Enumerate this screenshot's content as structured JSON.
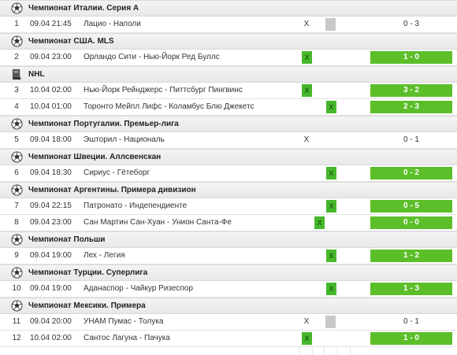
{
  "colors": {
    "win": "#5cbf2a",
    "pick": "#46b82c",
    "pending": "#c8c8c8"
  },
  "sections": [
    {
      "title": "Чемпионат Италии. Серия А",
      "icon": "soccer-ball-icon",
      "rows": [
        {
          "num": "1",
          "datetime": "09.04 21:45",
          "match": "Лацио - Наполи",
          "mark": "X",
          "mark_col": 1,
          "pending_col": 3,
          "score": "0 - 3",
          "win": false
        }
      ]
    },
    {
      "title": "Чемпионат США. MLS",
      "icon": "soccer-ball-icon",
      "rows": [
        {
          "num": "2",
          "datetime": "09.04 23:00",
          "match": "Орландо Сити - Нью-Йорк Ред Буллс",
          "mark": "X",
          "mark_col": 1,
          "score": "1 - 0",
          "win": true
        }
      ]
    },
    {
      "title": "NHL",
      "icon": "hockey-icon",
      "rows": [
        {
          "num": "3",
          "datetime": "10.04 02:00",
          "match": "Нью-Йорк Рейнджерс - Питтсбург Пингвинс",
          "mark": "X",
          "mark_col": 1,
          "score": "3 - 2",
          "win": true
        },
        {
          "num": "4",
          "datetime": "10.04 01:00",
          "match": "Торонто Мейпл Лифс - Коламбус Блю Джекетс",
          "mark": "X",
          "mark_col": 3,
          "score": "2 - 3",
          "win": true
        }
      ]
    },
    {
      "title": "Чемпионат Португалии. Премьер-лига",
      "icon": "soccer-ball-icon",
      "rows": [
        {
          "num": "5",
          "datetime": "09.04 18:00",
          "match": "Эшторил - Националь",
          "mark": "X",
          "mark_col": 1,
          "score": "0 - 1",
          "win": false
        }
      ]
    },
    {
      "title": "Чемпионат Швеции. Аллсвенскан",
      "icon": "soccer-ball-icon",
      "rows": [
        {
          "num": "6",
          "datetime": "09.04 18:30",
          "match": "Сириус - Гётеборг",
          "mark": "X",
          "mark_col": 3,
          "score": "0 - 2",
          "win": true
        }
      ]
    },
    {
      "title": "Чемпионат Аргентины. Примера дивизион",
      "icon": "soccer-ball-icon",
      "rows": [
        {
          "num": "7",
          "datetime": "09.04 22:15",
          "match": "Патронато - Индепендиенте",
          "mark": "X",
          "mark_col": 3,
          "score": "0 - 5",
          "win": true
        },
        {
          "num": "8",
          "datetime": "09.04 23:00",
          "match": "Сан Мартин Сан-Хуан - Унион Санта-Фе",
          "mark": "X",
          "mark_col": 2,
          "score": "0 - 0",
          "win": true
        }
      ]
    },
    {
      "title": "Чемпионат Польши",
      "icon": "soccer-ball-icon",
      "rows": [
        {
          "num": "9",
          "datetime": "09.04 19:00",
          "match": "Лех - Легия",
          "mark": "X",
          "mark_col": 3,
          "score": "1 - 2",
          "win": true
        }
      ]
    },
    {
      "title": "Чемпионат Турции. Суперлига",
      "icon": "soccer-ball-icon",
      "rows": [
        {
          "num": "10",
          "datetime": "09.04 19:00",
          "match": "Аданаспор - Чайкур Ризеспор",
          "mark": "X",
          "mark_col": 3,
          "score": "1 - 3",
          "win": true
        }
      ]
    },
    {
      "title": "Чемпионат Мексики. Примера",
      "icon": "soccer-ball-icon",
      "rows": [
        {
          "num": "11",
          "datetime": "09.04 20:00",
          "match": "УНАМ Пумас - Толука",
          "mark": "X",
          "mark_col": 1,
          "pending_col": 3,
          "score": "0 - 1",
          "win": false
        },
        {
          "num": "12",
          "datetime": "10.04 02:00",
          "match": "Сантос Лагуна - Пачука",
          "mark": "X",
          "mark_col": 1,
          "score": "1 - 0",
          "win": true
        }
      ]
    }
  ]
}
